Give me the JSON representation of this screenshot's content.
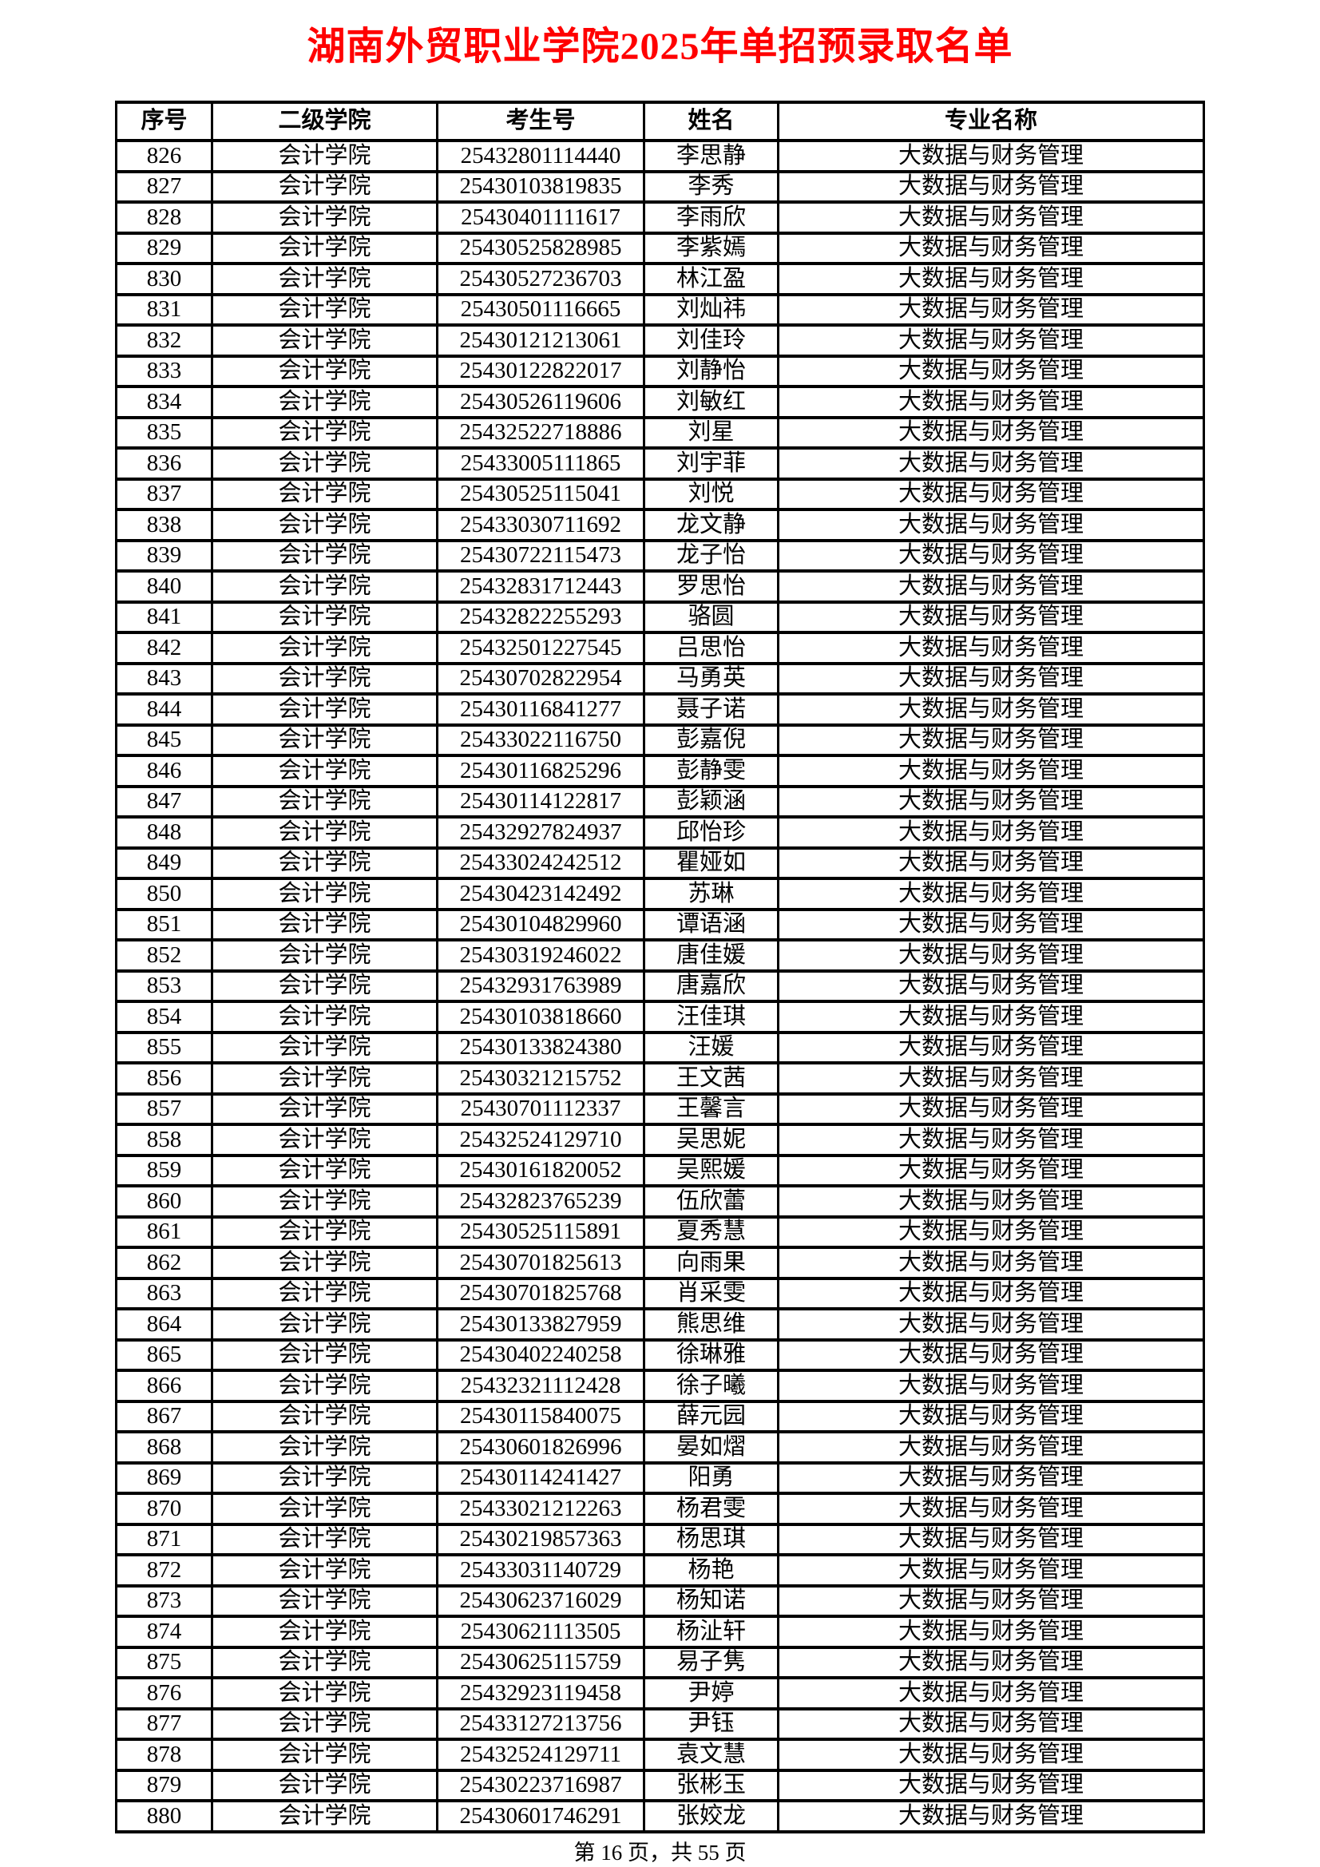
{
  "page": {
    "title": "湖南外贸职业学院2025年单招预录取名单",
    "title_color": "#ff0000",
    "footer": "第 16 页，共 55 页"
  },
  "table": {
    "headers": [
      "序号",
      "二级学院",
      "考生号",
      "姓名",
      "专业名称"
    ],
    "rows": [
      [
        "826",
        "会计学院",
        "25432801114440",
        "李思静",
        "大数据与财务管理"
      ],
      [
        "827",
        "会计学院",
        "25430103819835",
        "李秀",
        "大数据与财务管理"
      ],
      [
        "828",
        "会计学院",
        "25430401111617",
        "李雨欣",
        "大数据与财务管理"
      ],
      [
        "829",
        "会计学院",
        "25430525828985",
        "李紫嫣",
        "大数据与财务管理"
      ],
      [
        "830",
        "会计学院",
        "25430527236703",
        "林江盈",
        "大数据与财务管理"
      ],
      [
        "831",
        "会计学院",
        "25430501116665",
        "刘灿祎",
        "大数据与财务管理"
      ],
      [
        "832",
        "会计学院",
        "25430121213061",
        "刘佳玲",
        "大数据与财务管理"
      ],
      [
        "833",
        "会计学院",
        "25430122822017",
        "刘静怡",
        "大数据与财务管理"
      ],
      [
        "834",
        "会计学院",
        "25430526119606",
        "刘敏红",
        "大数据与财务管理"
      ],
      [
        "835",
        "会计学院",
        "25432522718886",
        "刘星",
        "大数据与财务管理"
      ],
      [
        "836",
        "会计学院",
        "25433005111865",
        "刘宇菲",
        "大数据与财务管理"
      ],
      [
        "837",
        "会计学院",
        "25430525115041",
        "刘悦",
        "大数据与财务管理"
      ],
      [
        "838",
        "会计学院",
        "25433030711692",
        "龙文静",
        "大数据与财务管理"
      ],
      [
        "839",
        "会计学院",
        "25430722115473",
        "龙子怡",
        "大数据与财务管理"
      ],
      [
        "840",
        "会计学院",
        "25432831712443",
        "罗思怡",
        "大数据与财务管理"
      ],
      [
        "841",
        "会计学院",
        "25432822255293",
        "骆圆",
        "大数据与财务管理"
      ],
      [
        "842",
        "会计学院",
        "25432501227545",
        "吕思怡",
        "大数据与财务管理"
      ],
      [
        "843",
        "会计学院",
        "25430702822954",
        "马勇英",
        "大数据与财务管理"
      ],
      [
        "844",
        "会计学院",
        "25430116841277",
        "聂子诺",
        "大数据与财务管理"
      ],
      [
        "845",
        "会计学院",
        "25433022116750",
        "彭嘉倪",
        "大数据与财务管理"
      ],
      [
        "846",
        "会计学院",
        "25430116825296",
        "彭静雯",
        "大数据与财务管理"
      ],
      [
        "847",
        "会计学院",
        "25430114122817",
        "彭颖涵",
        "大数据与财务管理"
      ],
      [
        "848",
        "会计学院",
        "25432927824937",
        "邱怡珍",
        "大数据与财务管理"
      ],
      [
        "849",
        "会计学院",
        "25433024242512",
        "瞿娅如",
        "大数据与财务管理"
      ],
      [
        "850",
        "会计学院",
        "25430423142492",
        "苏琳",
        "大数据与财务管理"
      ],
      [
        "851",
        "会计学院",
        "25430104829960",
        "谭语涵",
        "大数据与财务管理"
      ],
      [
        "852",
        "会计学院",
        "25430319246022",
        "唐佳媛",
        "大数据与财务管理"
      ],
      [
        "853",
        "会计学院",
        "25432931763989",
        "唐嘉欣",
        "大数据与财务管理"
      ],
      [
        "854",
        "会计学院",
        "25430103818660",
        "汪佳琪",
        "大数据与财务管理"
      ],
      [
        "855",
        "会计学院",
        "25430133824380",
        "汪媛",
        "大数据与财务管理"
      ],
      [
        "856",
        "会计学院",
        "25430321215752",
        "王文茜",
        "大数据与财务管理"
      ],
      [
        "857",
        "会计学院",
        "25430701112337",
        "王馨言",
        "大数据与财务管理"
      ],
      [
        "858",
        "会计学院",
        "25432524129710",
        "吴思妮",
        "大数据与财务管理"
      ],
      [
        "859",
        "会计学院",
        "25430161820052",
        "吴熙媛",
        "大数据与财务管理"
      ],
      [
        "860",
        "会计学院",
        "25432823765239",
        "伍欣蕾",
        "大数据与财务管理"
      ],
      [
        "861",
        "会计学院",
        "25430525115891",
        "夏秀慧",
        "大数据与财务管理"
      ],
      [
        "862",
        "会计学院",
        "25430701825613",
        "向雨果",
        "大数据与财务管理"
      ],
      [
        "863",
        "会计学院",
        "25430701825768",
        "肖采雯",
        "大数据与财务管理"
      ],
      [
        "864",
        "会计学院",
        "25430133827959",
        "熊思维",
        "大数据与财务管理"
      ],
      [
        "865",
        "会计学院",
        "25430402240258",
        "徐琳雅",
        "大数据与财务管理"
      ],
      [
        "866",
        "会计学院",
        "25432321112428",
        "徐子曦",
        "大数据与财务管理"
      ],
      [
        "867",
        "会计学院",
        "25430115840075",
        "薛元园",
        "大数据与财务管理"
      ],
      [
        "868",
        "会计学院",
        "25430601826996",
        "晏如熠",
        "大数据与财务管理"
      ],
      [
        "869",
        "会计学院",
        "25430114241427",
        "阳勇",
        "大数据与财务管理"
      ],
      [
        "870",
        "会计学院",
        "25433021212263",
        "杨君雯",
        "大数据与财务管理"
      ],
      [
        "871",
        "会计学院",
        "25430219857363",
        "杨思琪",
        "大数据与财务管理"
      ],
      [
        "872",
        "会计学院",
        "25433031140729",
        "杨艳",
        "大数据与财务管理"
      ],
      [
        "873",
        "会计学院",
        "25430623716029",
        "杨知诺",
        "大数据与财务管理"
      ],
      [
        "874",
        "会计学院",
        "25430621113505",
        "杨沚轩",
        "大数据与财务管理"
      ],
      [
        "875",
        "会计学院",
        "25430625115759",
        "易子隽",
        "大数据与财务管理"
      ],
      [
        "876",
        "会计学院",
        "25432923119458",
        "尹婷",
        "大数据与财务管理"
      ],
      [
        "877",
        "会计学院",
        "25433127213756",
        "尹钰",
        "大数据与财务管理"
      ],
      [
        "878",
        "会计学院",
        "25432524129711",
        "袁文慧",
        "大数据与财务管理"
      ],
      [
        "879",
        "会计学院",
        "25430223716987",
        "张彬玉",
        "大数据与财务管理"
      ],
      [
        "880",
        "会计学院",
        "25430601746291",
        "张姣龙",
        "大数据与财务管理"
      ]
    ]
  }
}
